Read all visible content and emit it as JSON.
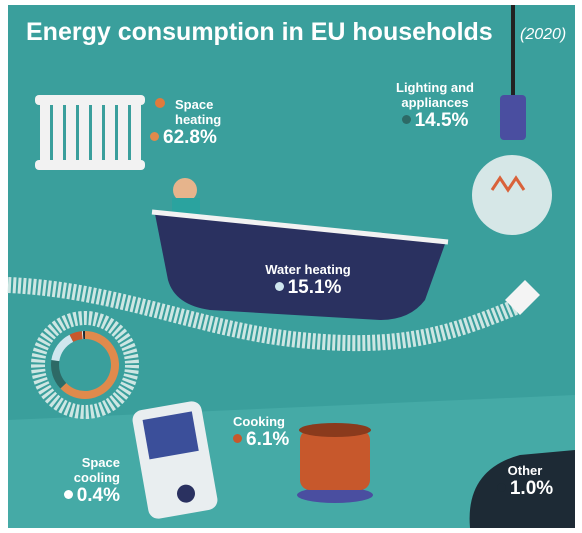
{
  "chart_data": {
    "type": "infographic",
    "title": "Energy consumption in EU households",
    "subtitle": "(2020)",
    "categories": [
      "Space heating",
      "Lighting and appliances",
      "Water heating",
      "Cooking",
      "Space cooling",
      "Other"
    ],
    "values": [
      62.8,
      14.5,
      15.1,
      6.1,
      0.4,
      1.0
    ],
    "value_labels": [
      "62.8%",
      "14.5%",
      "15.1%",
      "6.1%",
      "0.4%",
      "1.0%"
    ],
    "colors": [
      "#e08a4c",
      "#2d6a66",
      "#cfe6ee",
      "#c7582c",
      "#ffffff",
      "#1d2a35"
    ]
  }
}
